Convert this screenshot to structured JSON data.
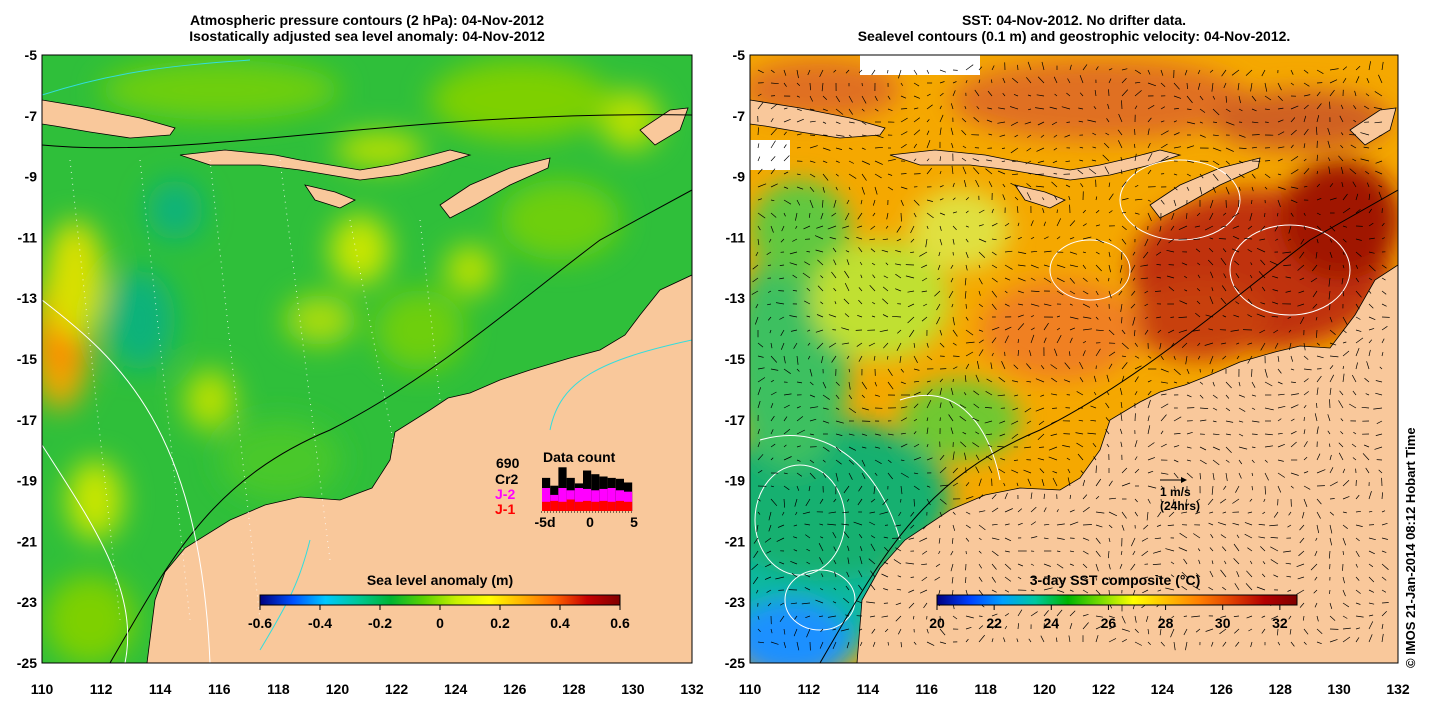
{
  "left_panel": {
    "title_line1": "Atmospheric pressure contours (2 hPa): 04-Nov-2012",
    "title_line2": "Isostatically adjusted sea level anomaly: 04-Nov-2012",
    "colorbar": {
      "title": "Sea level anomaly (m)",
      "ticks": [
        "-0.6",
        "-0.4",
        "-0.2",
        "0",
        "0.2",
        "0.4",
        "0.6"
      ],
      "min": -0.6,
      "max": 0.6
    },
    "data_count": {
      "title": "Data count",
      "total": "690",
      "missions": [
        {
          "label": "Cr2",
          "color": "#000000"
        },
        {
          "label": "J-2",
          "color": "#ff00ff"
        },
        {
          "label": "J-1",
          "color": "#ff0000"
        }
      ],
      "axis_labels": [
        "-5d",
        "0",
        "5"
      ]
    }
  },
  "right_panel": {
    "title_line1": "SST: 04-Nov-2012. No drifter data.",
    "title_line2": "Sealevel contours (0.1 m) and geostrophic velocity: 04-Nov-2012.",
    "colorbar": {
      "title": "3-day SST composite (°C)",
      "ticks": [
        "20",
        "22",
        "24",
        "26",
        "28",
        "30",
        "32"
      ],
      "min": 20,
      "max": 32.6
    },
    "velocity_scale": {
      "label": "1 m/s",
      "sublabel": "(24hrs)"
    }
  },
  "axes": {
    "lon_ticks": [
      "110",
      "112",
      "114",
      "116",
      "118",
      "120",
      "122",
      "124",
      "126",
      "128",
      "130",
      "132"
    ],
    "lat_ticks": [
      "-5",
      "-7",
      "-9",
      "-11",
      "-13",
      "-15",
      "-17",
      "-19",
      "-21",
      "-23",
      "-25"
    ],
    "lon_range": [
      110,
      132
    ],
    "lat_range": [
      -25,
      -5
    ]
  },
  "credit": "© IMOS 21-Jan-2014 08:12 Hobart Time",
  "colors": {
    "land": "#f9c89b",
    "sla_colormap": [
      "#00007f",
      "#0050ff",
      "#00c8ff",
      "#00c896",
      "#00b432",
      "#5ad200",
      "#c8f000",
      "#ffff00",
      "#ffb400",
      "#ff6400",
      "#c80000",
      "#800000"
    ],
    "sst_colormap": [
      "#000080",
      "#0040ff",
      "#00a0ff",
      "#00c8a0",
      "#00b400",
      "#78dc00",
      "#ffff00",
      "#ffc000",
      "#ff8000",
      "#e04000",
      "#b40000",
      "#800000"
    ]
  }
}
